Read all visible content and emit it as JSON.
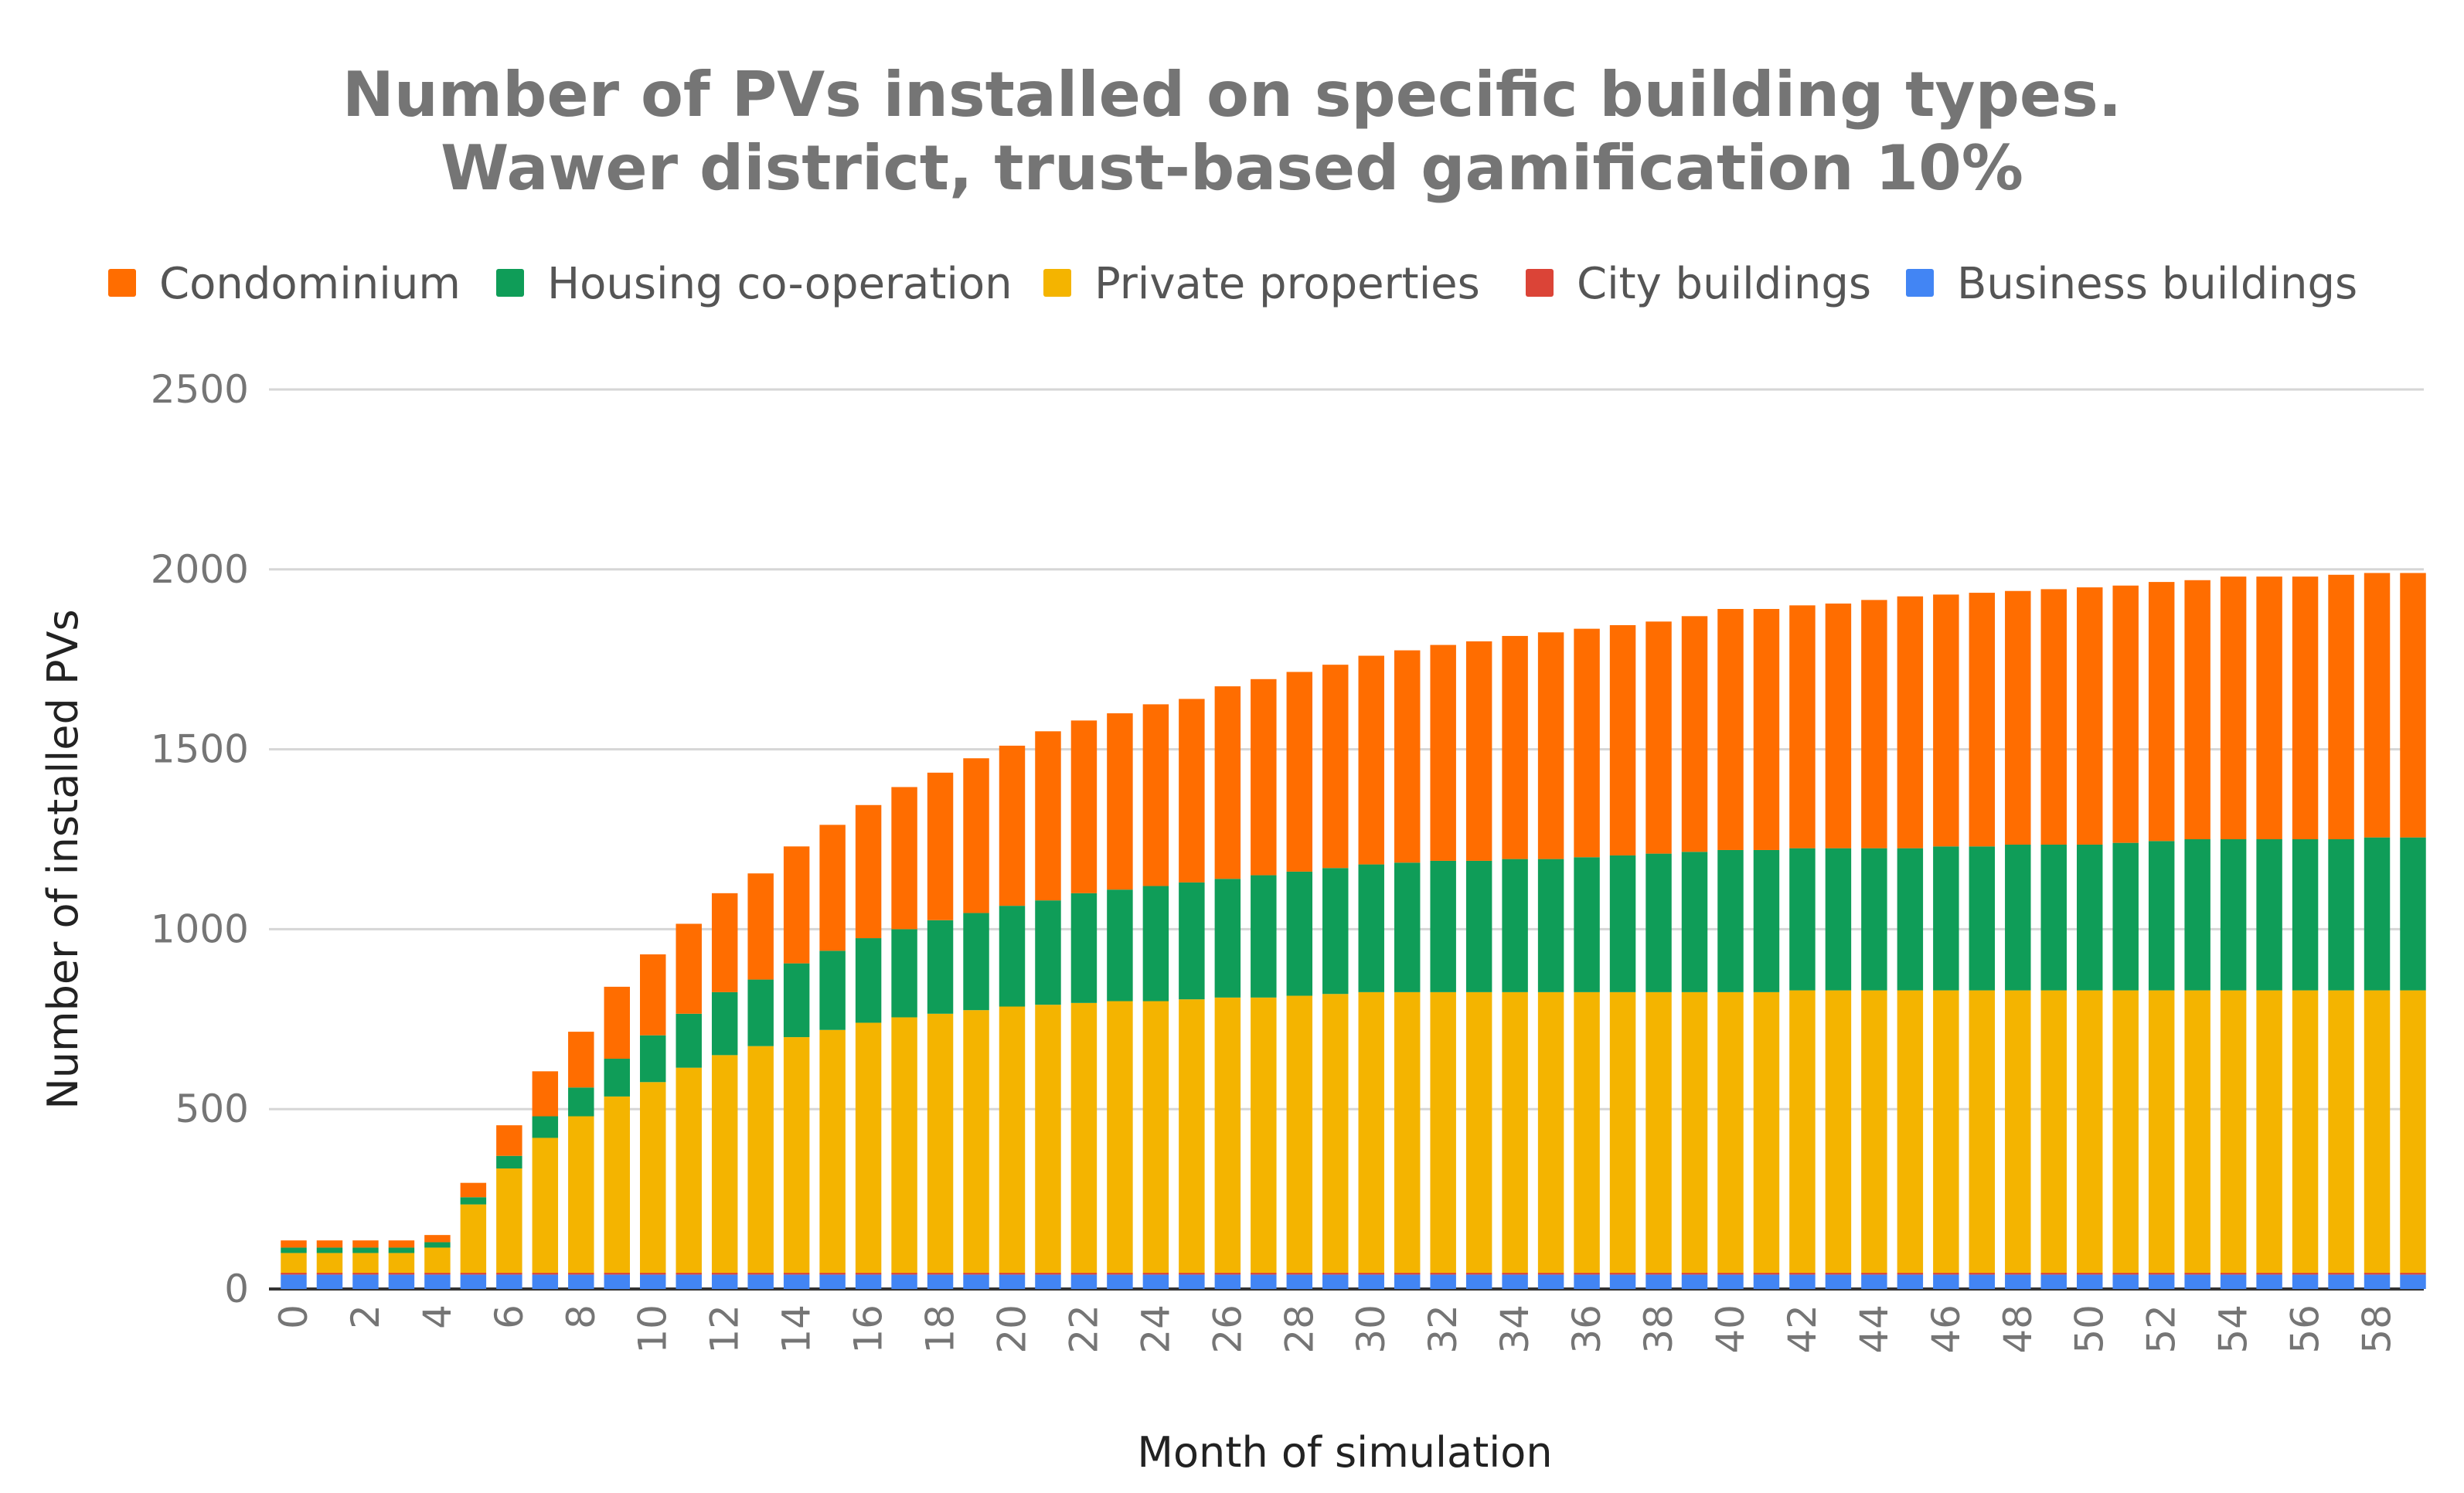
{
  "chart_data": {
    "type": "bar",
    "stacked": true,
    "title": "Number of PVs installed on specific building types.",
    "subtitle": "Wawer district, trust-based gamification 10%",
    "xlabel": "Month of simulation",
    "ylabel": "Number of installed PVs",
    "ylim": [
      0,
      2500
    ],
    "yticks": [
      "0",
      "500",
      "1000",
      "1500",
      "2000",
      "2500"
    ],
    "legend_position": "top",
    "categories": [
      "0",
      "1",
      "2",
      "3",
      "4",
      "5",
      "6",
      "7",
      "8",
      "9",
      "10",
      "11",
      "12",
      "13",
      "14",
      "15",
      "16",
      "17",
      "18",
      "19",
      "20",
      "21",
      "22",
      "23",
      "24",
      "25",
      "26",
      "27",
      "28",
      "29",
      "30",
      "31",
      "32",
      "33",
      "34",
      "35",
      "36",
      "37",
      "38",
      "39",
      "40",
      "41",
      "42",
      "43",
      "44",
      "45",
      "46",
      "47",
      "48",
      "49",
      "50",
      "51",
      "52",
      "53",
      "54",
      "55",
      "56",
      "57",
      "58",
      "59"
    ],
    "xtick_labels": [
      "0",
      "2",
      "4",
      "6",
      "8",
      "10",
      "12",
      "14",
      "16",
      "18",
      "20",
      "22",
      "24",
      "26",
      "28",
      "30",
      "32",
      "34",
      "36",
      "38",
      "40",
      "42",
      "44",
      "46",
      "48",
      "50",
      "52",
      "54",
      "56",
      "58"
    ],
    "legend": [
      "Condominium",
      "Housing co-operation",
      "Private properties",
      "City buildings",
      "Business buildings"
    ],
    "series": [
      {
        "name": "Business buildings",
        "color": "#4285f4",
        "values": [
          40,
          40,
          40,
          40,
          40,
          40,
          40,
          40,
          40,
          40,
          40,
          40,
          40,
          40,
          40,
          40,
          40,
          40,
          40,
          40,
          40,
          40,
          40,
          40,
          40,
          40,
          40,
          40,
          40,
          40,
          40,
          40,
          40,
          40,
          40,
          40,
          40,
          40,
          40,
          40,
          40,
          40,
          40,
          40,
          40,
          40,
          40,
          40,
          40,
          40,
          40,
          40,
          40,
          40,
          40,
          40,
          40,
          40,
          40,
          40
        ]
      },
      {
        "name": "City buildings",
        "color": "#db4437",
        "values": [
          5,
          5,
          5,
          5,
          5,
          5,
          5,
          5,
          5,
          5,
          5,
          5,
          5,
          5,
          5,
          5,
          5,
          5,
          5,
          5,
          5,
          5,
          5,
          5,
          5,
          5,
          5,
          5,
          5,
          5,
          5,
          5,
          5,
          5,
          5,
          5,
          5,
          5,
          5,
          5,
          5,
          5,
          5,
          5,
          5,
          5,
          5,
          5,
          5,
          5,
          5,
          5,
          5,
          5,
          5,
          5,
          5,
          5,
          5,
          5
        ]
      },
      {
        "name": "Private properties",
        "color": "#f4b400",
        "values": [
          55,
          55,
          55,
          55,
          70,
          190,
          290,
          375,
          435,
          490,
          530,
          570,
          605,
          630,
          655,
          675,
          695,
          710,
          720,
          730,
          740,
          745,
          750,
          755,
          755,
          760,
          765,
          765,
          770,
          775,
          780,
          780,
          780,
          780,
          780,
          780,
          780,
          780,
          780,
          780,
          780,
          780,
          785,
          785,
          785,
          785,
          785,
          785,
          785,
          785,
          785,
          785,
          785,
          785,
          785,
          785,
          785,
          785,
          785,
          785
        ]
      },
      {
        "name": "Housing co-operation",
        "color": "#0f9d58",
        "values": [
          15,
          15,
          15,
          15,
          15,
          20,
          35,
          60,
          80,
          105,
          130,
          150,
          175,
          185,
          205,
          220,
          235,
          245,
          260,
          270,
          280,
          290,
          305,
          310,
          320,
          325,
          330,
          340,
          345,
          350,
          355,
          360,
          365,
          365,
          370,
          370,
          375,
          380,
          385,
          390,
          395,
          395,
          395,
          395,
          395,
          395,
          400,
          400,
          405,
          405,
          405,
          410,
          415,
          420,
          420,
          420,
          420,
          420,
          425,
          425
        ]
      },
      {
        "name": "Condominium",
        "color": "#ff6d00",
        "values": [
          20,
          20,
          20,
          20,
          20,
          40,
          85,
          125,
          155,
          200,
          225,
          250,
          275,
          295,
          325,
          350,
          370,
          395,
          410,
          430,
          445,
          470,
          480,
          490,
          505,
          510,
          535,
          545,
          555,
          565,
          580,
          590,
          600,
          610,
          620,
          630,
          635,
          640,
          645,
          655,
          670,
          670,
          675,
          680,
          690,
          700,
          700,
          705,
          705,
          710,
          715,
          715,
          720,
          720,
          730,
          730,
          730,
          735,
          735,
          735
        ]
      }
    ]
  }
}
